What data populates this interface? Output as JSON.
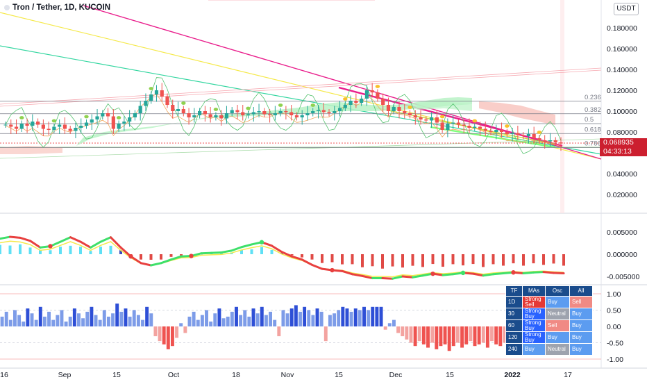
{
  "header": {
    "title": "Tron / Tether, 1D, KUCOIN",
    "currency": "USDT"
  },
  "price_tags": {
    "last_price": "0.068935",
    "countdown": "04:33:13",
    "color": "#cc1f2f"
  },
  "colors": {
    "up": "#26a69a",
    "down": "#ef5350",
    "magenta_trend": "#e91e8c",
    "yellow_trend": "#f5e94a",
    "green_trend": "#33d6a0",
    "cloud_green": "#b9f2c5",
    "cloud_red": "#f8c6bf",
    "strong_sell": "#e53935",
    "strong_buy": "#2962ff",
    "buy": "#5c9cf0",
    "neutral": "#9ea3ae",
    "sell": "#f08a84"
  },
  "chart_data": [
    {
      "type": "candlestick",
      "title": "Tron / Tether, 1D, KUCOIN",
      "ylabel": "",
      "ylim": [
        0.0,
        0.205
      ],
      "y_ticks": [
        "0.180000",
        "0.160000",
        "0.140000",
        "0.120000",
        "0.100000",
        "0.080000",
        "0.060000",
        "0.040000",
        "0.020000"
      ],
      "x_ticks": [
        "16",
        "Sep",
        "15",
        "Oct",
        "18",
        "Nov",
        "15",
        "Dec",
        "15",
        "2022",
        "17"
      ],
      "fib_levels": [
        {
          "label": "0.236",
          "value": 0.1095
        },
        {
          "label": "0.382",
          "value": 0.0975
        },
        {
          "label": "0.5",
          "value": 0.088
        },
        {
          "label": "0.618",
          "value": 0.0785
        },
        {
          "label": "0.786",
          "value": 0.065
        }
      ],
      "last_price": 0.068935,
      "close_series": [
        0.087,
        0.085,
        0.083,
        0.088,
        0.086,
        0.09,
        0.087,
        0.083,
        0.082,
        0.085,
        0.087,
        0.083,
        0.081,
        0.084,
        0.086,
        0.089,
        0.092,
        0.095,
        0.098,
        0.095,
        0.083,
        0.088,
        0.09,
        0.094,
        0.098,
        0.105,
        0.11,
        0.116,
        0.12,
        0.114,
        0.106,
        0.1,
        0.102,
        0.098,
        0.094,
        0.096,
        0.1,
        0.097,
        0.094,
        0.096,
        0.093,
        0.098,
        0.101,
        0.099,
        0.096,
        0.097,
        0.099,
        0.1,
        0.097,
        0.096,
        0.098,
        0.1,
        0.099,
        0.096,
        0.094,
        0.096,
        0.098,
        0.1,
        0.101,
        0.099,
        0.098,
        0.1,
        0.103,
        0.106,
        0.11,
        0.108,
        0.112,
        0.12,
        0.118,
        0.112,
        0.106,
        0.1,
        0.104,
        0.1,
        0.098,
        0.096,
        0.094,
        0.092,
        0.091,
        0.094,
        0.089,
        0.082,
        0.088,
        0.089,
        0.087,
        0.086,
        0.084,
        0.085,
        0.083,
        0.081,
        0.08,
        0.082,
        0.08,
        0.078,
        0.079,
        0.077,
        0.076,
        0.078,
        0.074,
        0.072,
        0.071,
        0.072,
        0.07,
        0.068935
      ]
    },
    {
      "type": "line",
      "title": "",
      "ylim": [
        -0.0085,
        0.0085
      ],
      "y_ticks": [
        "0.005000",
        "0.000000",
        "-0.005000"
      ],
      "series": [
        {
          "values": [
            0.0035,
            0.0039,
            0.0037,
            0.003,
            0.0015,
            0.0018,
            0.0028,
            0.0038,
            0.0028,
            0.0015,
            0.0028,
            0.0038,
            0.0015,
            -0.0005,
            -0.002,
            -0.0025,
            -0.002,
            -0.0012,
            -0.0005,
            -0.0004,
            0.0002,
            0.0003,
            0.0004,
            0.0008,
            0.0016,
            0.0022,
            0.0027,
            0.0019,
            0.0005,
            -0.0005,
            -0.0012,
            -0.0024,
            -0.0033,
            -0.0036,
            -0.0038,
            -0.0045,
            -0.0049,
            -0.0054,
            -0.0054,
            -0.0055,
            -0.005,
            -0.0052,
            -0.0048,
            -0.0044,
            -0.0047,
            -0.0045,
            -0.0042,
            -0.0044,
            -0.0048,
            -0.0045,
            -0.0043,
            -0.0041,
            -0.0043,
            -0.0041,
            -0.004,
            -0.0042,
            -0.0043
          ]
        }
      ]
    },
    {
      "type": "bar",
      "title": "",
      "ylim": [
        -1.2,
        1.2
      ],
      "y_ticks": [
        "1.00",
        "0.50",
        "0.00",
        "-0.50",
        "-1.00"
      ],
      "values": [
        0.3,
        0.45,
        0.2,
        0.5,
        0.35,
        0.15,
        0.55,
        0.4,
        0.2,
        0.6,
        0.3,
        0.45,
        0.2,
        0.35,
        0.5,
        0.15,
        0.3,
        0.55,
        0.4,
        0.25,
        0.45,
        0.6,
        0.35,
        0.2,
        0.5,
        0.3,
        0.4,
        0.7,
        0.45,
        0.55,
        0.3,
        0.5,
        0.35,
        0.2,
        0.6,
        0.4,
        -0.3,
        -0.45,
        -0.55,
        -0.7,
        -0.6,
        -0.35,
        0.1,
        -0.2,
        0.3,
        0.45,
        0.2,
        0.35,
        0.5,
        0.15,
        0.4,
        0.55,
        0.25,
        0.3,
        0.45,
        0.6,
        0.35,
        0.5,
        0.3,
        0.55,
        0.4,
        0.6,
        0.35,
        0.45,
        0.2,
        -0.3,
        0.5,
        0.4,
        0.55,
        0.65,
        0.45,
        0.6,
        0.5,
        0.35,
        0.55,
        0.45,
        -0.45,
        0.35,
        0.4,
        0.5,
        0.6,
        0.55,
        0.45,
        0.55,
        0.5,
        0.6,
        0.5,
        0.6,
        0.6,
        0.6,
        -0.1,
        0.1,
        0.2,
        -0.2,
        -0.3,
        -0.4,
        -0.5,
        -0.6,
        -0.45,
        -0.55,
        -0.65,
        -0.5,
        -0.7,
        -0.6,
        -0.55,
        -0.75,
        -0.6,
        -0.5,
        -0.65,
        -0.55,
        -0.45,
        -0.6,
        -0.55,
        -0.5,
        -0.65,
        -0.45,
        -0.55,
        -0.6,
        -0.5
      ]
    }
  ],
  "signal_table": {
    "headers": [
      "TF",
      "MAs",
      "Osc",
      "All"
    ],
    "rows": [
      {
        "tf": "1D",
        "mas": "Strong Sell",
        "osc": "Buy",
        "all": "Sell",
        "mas_color": "#e53935",
        "osc_color": "#5c9cf0",
        "all_color": "#f08a84"
      },
      {
        "tf": "30",
        "mas": "Strong Buy",
        "osc": "Neutral",
        "all": "Buy",
        "mas_color": "#2962ff",
        "osc_color": "#9ea3ae",
        "all_color": "#5c9cf0"
      },
      {
        "tf": "60",
        "mas": "Strong Buy",
        "osc": "Sell",
        "all": "Buy",
        "mas_color": "#2962ff",
        "osc_color": "#f08a84",
        "all_color": "#5c9cf0"
      },
      {
        "tf": "120",
        "mas": "Strong Buy",
        "osc": "Buy",
        "all": "Buy",
        "mas_color": "#2962ff",
        "osc_color": "#5c9cf0",
        "all_color": "#5c9cf0"
      },
      {
        "tf": "240",
        "mas": "Buy",
        "osc": "Neutral",
        "all": "Buy",
        "mas_color": "#5c9cf0",
        "osc_color": "#9ea3ae",
        "all_color": "#5c9cf0"
      }
    ]
  }
}
